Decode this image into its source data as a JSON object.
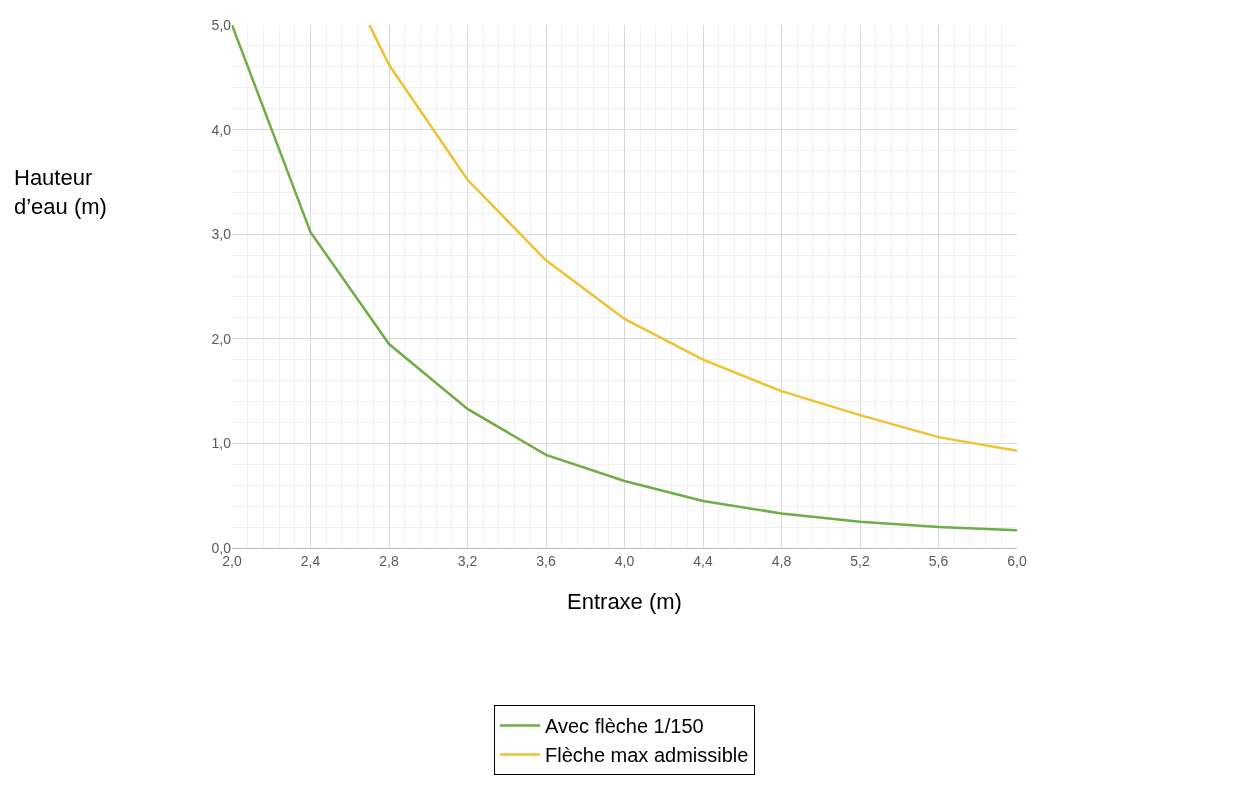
{
  "chart_data": {
    "type": "line",
    "xlabel": "Entraxe (m)",
    "ylabel": "Hauteur d’eau (m)",
    "xlim": [
      2.0,
      6.0
    ],
    "ylim": [
      0,
      5.0
    ],
    "xticks": [
      {
        "value": 2.0,
        "label": "2,0"
      },
      {
        "value": 2.4,
        "label": "2,4"
      },
      {
        "value": 2.8,
        "label": "2,8"
      },
      {
        "value": 3.2,
        "label": "3,2"
      },
      {
        "value": 3.6,
        "label": "3,6"
      },
      {
        "value": 4.0,
        "label": "4,0"
      },
      {
        "value": 4.4,
        "label": "4,4"
      },
      {
        "value": 4.8,
        "label": "4,8"
      },
      {
        "value": 5.2,
        "label": "5,2"
      },
      {
        "value": 5.6,
        "label": "5,6"
      },
      {
        "value": 6.0,
        "label": "6,0"
      }
    ],
    "yticks": [
      {
        "value": 0,
        "label": "0,0"
      },
      {
        "value": 1,
        "label": "1,0"
      },
      {
        "value": 2,
        "label": "2,0"
      },
      {
        "value": 3,
        "label": "3,0"
      },
      {
        "value": 4,
        "label": "4,0"
      },
      {
        "value": 5,
        "label": "5,0"
      }
    ],
    "grid": true,
    "legend": "bottom",
    "marker": "none",
    "line_style": "solid",
    "series": [
      {
        "name": "Avec flèche 1/150",
        "color": "#70ad47",
        "x": [
          2.0,
          2.4,
          2.8,
          3.2,
          3.6,
          4.0,
          4.4,
          4.8,
          5.2,
          5.6,
          6.0
        ],
        "values": [
          5.0,
          3.02,
          1.95,
          1.33,
          0.89,
          0.64,
          0.45,
          0.33,
          0.25,
          0.2,
          0.17
        ]
      },
      {
        "name": "Flèche max admissible",
        "color": "#f0c232",
        "x": [
          2.7,
          2.8,
          3.2,
          3.6,
          4.0,
          4.4,
          4.8,
          5.2,
          5.6,
          6.0
        ],
        "values": [
          5.0,
          4.62,
          3.52,
          2.75,
          2.19,
          1.8,
          1.5,
          1.27,
          1.06,
          0.93
        ]
      }
    ]
  }
}
